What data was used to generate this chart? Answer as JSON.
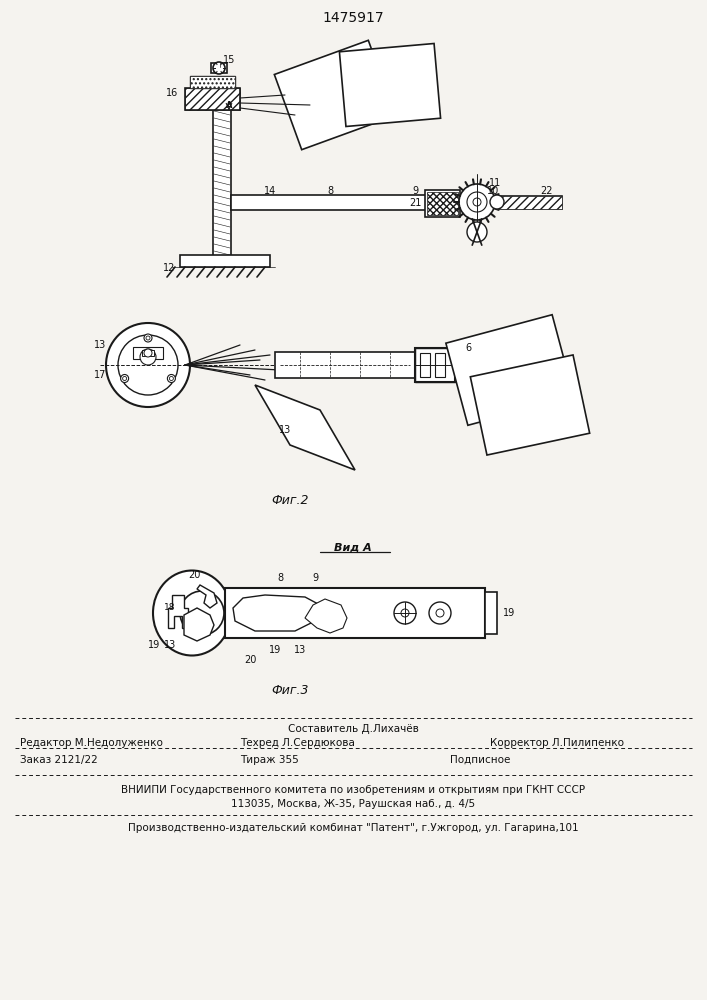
{
  "patent_number": "1475917",
  "bg_color": "#f5f3ef",
  "line_color": "#1a1a1a",
  "text_color": "#111111",
  "fig2_caption": "Фиг.2",
  "fig3_caption": "Фиг.3",
  "vid_a_label": "Вид A",
  "footer_line1_center_top": "Составитель Д.Лихачёв",
  "footer_line1_left": "Редактор М.Недолуженко",
  "footer_line1_center": "Техред Л.Сердюкова",
  "footer_line1_right": "Корректор Л.Пилипенко",
  "footer_line2_left": "Заказ 2121/22",
  "footer_line2_center": "Тираж 355",
  "footer_line2_right": "Подписное",
  "footer_line3": "ВНИИПИ Государственного комитета по изобретениям и открытиям при ГКНТ СССР",
  "footer_line4": "113035, Москва, Ж-35, Раушская наб., д. 4/5",
  "footer_line5": "Производственно-издательский комбинат \"Патент\", г.Ужгород, ул. Гагарина,101"
}
